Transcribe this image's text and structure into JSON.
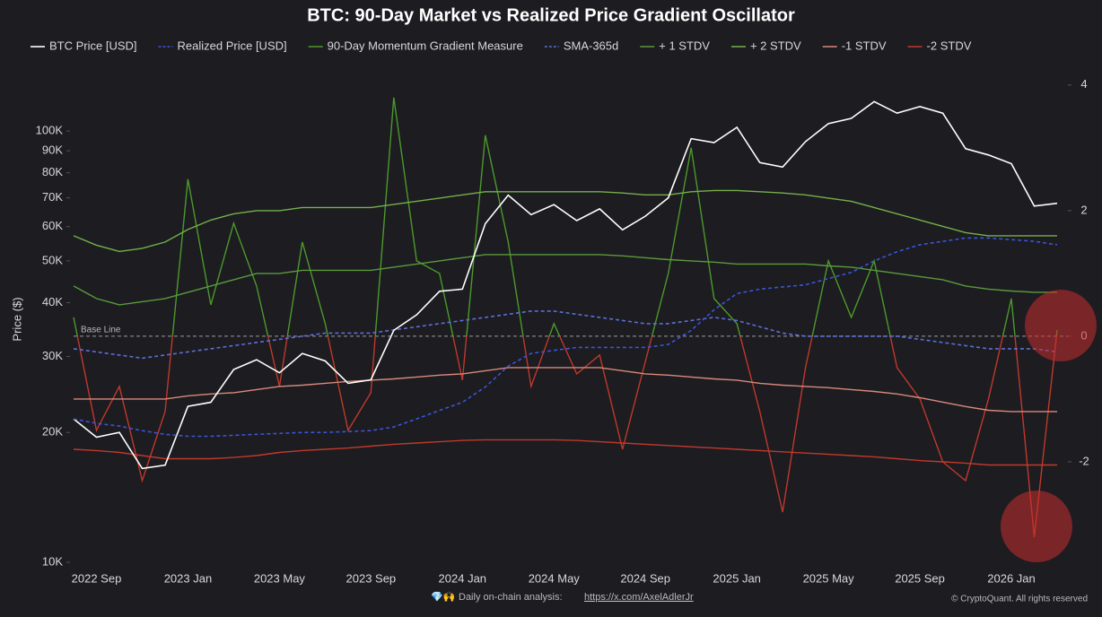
{
  "chart_data": {
    "type": "line",
    "title": "BTC: 90-Day Market vs Realized Price Gradient Oscillator",
    "ylabel": "Price ($)",
    "baseline_label": "Base Line",
    "log_scale": true,
    "categories": [
      null,
      "2022 Sep",
      null,
      null,
      null,
      "2023 Jan",
      null,
      null,
      null,
      "2023 May",
      null,
      null,
      null,
      "2023 Sep",
      null,
      null,
      null,
      "2024 Jan",
      null,
      null,
      null,
      "2024 May",
      null,
      null,
      null,
      "2024 Sep",
      null,
      null,
      null,
      "2025 Jan",
      null,
      null,
      null,
      "2025 May",
      null,
      null,
      null,
      "2025 Sep",
      null,
      null,
      null,
      "2026 Jan",
      null,
      null
    ],
    "ylim": [
      10000,
      134000
    ],
    "yticks": [
      {
        "value": 10000,
        "label": "10K"
      },
      {
        "value": 20000,
        "label": "20K"
      },
      {
        "value": 30000,
        "label": "30K"
      },
      {
        "value": 40000,
        "label": "40K"
      },
      {
        "value": 50000,
        "label": "50K"
      },
      {
        "value": 60000,
        "label": "60K"
      },
      {
        "value": 70000,
        "label": "70K"
      },
      {
        "value": 80000,
        "label": "80K"
      },
      {
        "value": 90000,
        "label": "90K"
      },
      {
        "value": 100000,
        "label": "100K"
      }
    ],
    "y2lim": [
      -3.6,
      4.14
    ],
    "y2ticks": [
      -2,
      0,
      2,
      4
    ],
    "series": [
      {
        "name": "BTC Price [USD]",
        "color": "#ffffff",
        "values": [
          21500,
          19500,
          20000,
          16500,
          16800,
          23000,
          23500,
          28000,
          29500,
          27500,
          30500,
          29300,
          26000,
          26500,
          34500,
          37500,
          42500,
          43000,
          61000,
          71000,
          64000,
          67500,
          62000,
          66000,
          59000,
          63500,
          70000,
          96000,
          94000,
          102000,
          84500,
          82500,
          94500,
          104000,
          107000,
          117000,
          110000,
          114000,
          110000,
          91000,
          88000,
          84000,
          67000,
          68000
        ]
      },
      {
        "name": "Realized Price [USD]",
        "color": "#3b55d4",
        "dash": true,
        "values": [
          21500,
          21000,
          20700,
          20200,
          19800,
          19600,
          19600,
          19700,
          19800,
          19900,
          20000,
          20000,
          20100,
          20200,
          20600,
          21500,
          22500,
          23500,
          25500,
          28500,
          30500,
          31000,
          31500,
          31500,
          31500,
          31500,
          32000,
          34500,
          38500,
          42000,
          43000,
          43500,
          44000,
          45500,
          47000,
          50000,
          52500,
          54500,
          55500,
          56500,
          56500,
          56000,
          55500,
          54500
        ]
      },
      {
        "name": "90-Day Momentum Gradient Measure",
        "color": "#4c9a2a",
        "negative_color": "#c0392b",
        "axis": "y2",
        "values": [
          0.3,
          -1.5,
          -0.8,
          -2.3,
          -1.2,
          2.5,
          0.5,
          1.8,
          0.8,
          -0.8,
          1.5,
          0.2,
          -1.5,
          -0.9,
          3.8,
          1.2,
          1.0,
          -0.7,
          3.2,
          1.5,
          -0.8,
          0.2,
          -0.6,
          -0.3,
          -1.8,
          -0.4,
          1.0,
          3.0,
          0.6,
          0.2,
          -1.2,
          -2.8,
          -0.5,
          1.2,
          0.3,
          1.2,
          -0.5,
          -1.0,
          -2.0,
          -2.3,
          -1.0,
          0.6,
          -3.2,
          0.1
        ]
      },
      {
        "name": "SMA-365d",
        "color": "#5b6fd6",
        "dash": true,
        "axis": "y2",
        "values": [
          -0.2,
          -0.25,
          -0.3,
          -0.35,
          -0.3,
          -0.25,
          -0.2,
          -0.15,
          -0.1,
          -0.05,
          0,
          0.05,
          0.05,
          0.05,
          0.1,
          0.15,
          0.2,
          0.25,
          0.3,
          0.35,
          0.4,
          0.4,
          0.35,
          0.3,
          0.25,
          0.2,
          0.2,
          0.25,
          0.3,
          0.25,
          0.15,
          0.05,
          0,
          0,
          0,
          0,
          0,
          -0.05,
          -0.1,
          -0.15,
          -0.2,
          -0.2,
          -0.2,
          -0.25
        ]
      },
      {
        "name": "+ 1 STDV",
        "color": "#5a9a3c",
        "axis": "y2",
        "values": [
          0.8,
          0.6,
          0.5,
          0.55,
          0.6,
          0.7,
          0.8,
          0.9,
          1.0,
          1.0,
          1.05,
          1.05,
          1.05,
          1.05,
          1.1,
          1.15,
          1.2,
          1.25,
          1.3,
          1.3,
          1.3,
          1.3,
          1.3,
          1.3,
          1.28,
          1.25,
          1.22,
          1.2,
          1.18,
          1.15,
          1.15,
          1.15,
          1.15,
          1.12,
          1.1,
          1.05,
          1.0,
          0.95,
          0.9,
          0.8,
          0.75,
          0.72,
          0.7,
          0.7
        ]
      },
      {
        "name": "+ 2 STDV",
        "color": "#74b04a",
        "axis": "y2",
        "values": [
          1.6,
          1.45,
          1.35,
          1.4,
          1.5,
          1.7,
          1.85,
          1.95,
          2.0,
          2.0,
          2.05,
          2.05,
          2.05,
          2.05,
          2.1,
          2.15,
          2.2,
          2.25,
          2.3,
          2.3,
          2.3,
          2.3,
          2.3,
          2.3,
          2.28,
          2.25,
          2.25,
          2.3,
          2.32,
          2.32,
          2.3,
          2.28,
          2.25,
          2.2,
          2.15,
          2.05,
          1.95,
          1.85,
          1.75,
          1.65,
          1.6,
          1.6,
          1.6,
          1.6
        ]
      },
      {
        "name": "-1 STDV",
        "color": "#d9897a",
        "axis": "y2",
        "values": [
          -1.0,
          -1.0,
          -1.0,
          -1.0,
          -1.0,
          -0.95,
          -0.92,
          -0.9,
          -0.85,
          -0.8,
          -0.78,
          -0.75,
          -0.72,
          -0.7,
          -0.68,
          -0.65,
          -0.62,
          -0.6,
          -0.55,
          -0.5,
          -0.5,
          -0.5,
          -0.5,
          -0.5,
          -0.55,
          -0.6,
          -0.62,
          -0.65,
          -0.68,
          -0.7,
          -0.75,
          -0.78,
          -0.8,
          -0.82,
          -0.85,
          -0.88,
          -0.92,
          -0.98,
          -1.05,
          -1.12,
          -1.18,
          -1.2,
          -1.2,
          -1.2
        ]
      },
      {
        "name": "-2 STDV",
        "color": "#c0392b",
        "axis": "y2",
        "values": [
          -1.8,
          -1.82,
          -1.85,
          -1.9,
          -1.95,
          -1.95,
          -1.95,
          -1.93,
          -1.9,
          -1.85,
          -1.82,
          -1.8,
          -1.78,
          -1.75,
          -1.72,
          -1.7,
          -1.68,
          -1.66,
          -1.65,
          -1.65,
          -1.65,
          -1.65,
          -1.66,
          -1.68,
          -1.7,
          -1.72,
          -1.74,
          -1.76,
          -1.78,
          -1.8,
          -1.82,
          -1.84,
          -1.86,
          -1.88,
          -1.9,
          -1.92,
          -1.95,
          -1.98,
          -2.0,
          -2.02,
          -2.05,
          -2.05,
          -2.05,
          -2.05
        ]
      }
    ]
  },
  "footer": {
    "emoji": "💎🙌",
    "text": "Daily on-chain analysis:",
    "link": "https://x.com/AxelAdlerJr",
    "copyright": "© CryptoQuant. All rights reserved"
  }
}
